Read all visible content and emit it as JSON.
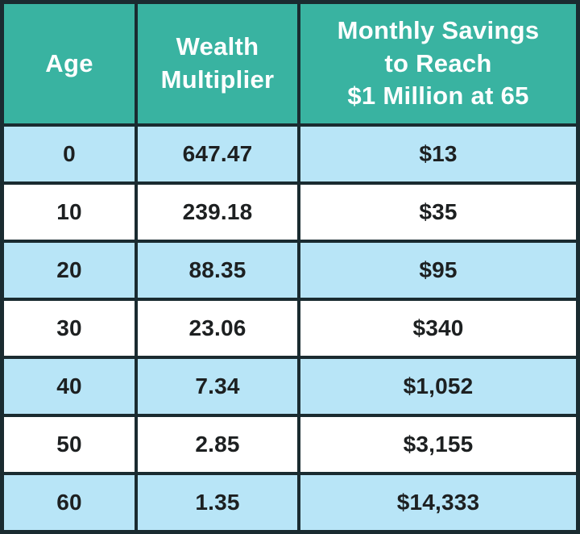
{
  "theme": {
    "header_bg": "#39b3a1",
    "header_text": "#ffffff",
    "row_alt_bg": "#b8e5f7",
    "row_bg": "#ffffff",
    "border_color": "#1a2b30",
    "body_text": "#1d2021"
  },
  "table": {
    "headers": [
      {
        "label": "Age"
      },
      {
        "label": "Wealth\nMultiplier"
      },
      {
        "label": "Monthly Savings\nto Reach\n$1 Million at 65"
      }
    ]
  },
  "chart_data": {
    "type": "table",
    "columns": [
      "Age",
      "Wealth Multiplier",
      "Monthly Savings to Reach $1 Million at 65"
    ],
    "rows": [
      [
        "0",
        "647.47",
        "$13"
      ],
      [
        "10",
        "239.18",
        "$35"
      ],
      [
        "20",
        "88.35",
        "$95"
      ],
      [
        "30",
        "23.06",
        "$340"
      ],
      [
        "40",
        "7.34",
        "$1,052"
      ],
      [
        "50",
        "2.85",
        "$3,155"
      ],
      [
        "60",
        "1.35",
        "$14,333"
      ]
    ]
  }
}
